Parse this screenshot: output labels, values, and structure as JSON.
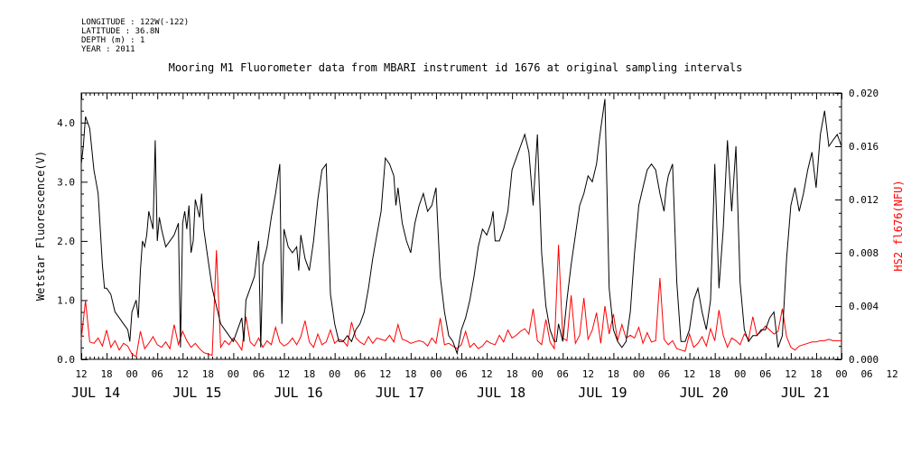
{
  "meta": {
    "longitude": "LONGITUDE : 122W(-122)",
    "latitude": "LATITUDE : 36.8N",
    "depth": "DEPTH (m) : 1",
    "year": "YEAR : 2011"
  },
  "chart_data": {
    "type": "line",
    "title": "Mooring M1 Fluorometer data from MBARI instrument id 1676 at original sampling intervals",
    "xlabel": "",
    "ylabel": "Wetstar Fluorescence(V)",
    "y2label": "HS2 fl676(NFU)",
    "xlim_hours": [
      12,
      192
    ],
    "ylim": [
      0.0,
      4.5
    ],
    "y2lim": [
      0.0,
      0.02
    ],
    "yticks": [
      "0.0",
      "1.0",
      "2.0",
      "3.0",
      "4.0"
    ],
    "y2ticks": [
      "0.000",
      "0.004",
      "0.008",
      "0.012",
      "0.016",
      "0.020"
    ],
    "hour_tick_labels": [
      "12",
      "18",
      "00",
      "06",
      "12",
      "18",
      "00",
      "06",
      "12",
      "18",
      "00",
      "06",
      "12",
      "18",
      "00",
      "06",
      "12",
      "18",
      "00",
      "06",
      "12",
      "18",
      "00",
      "06",
      "12",
      "18",
      "00",
      "06",
      "12",
      "18",
      "00",
      "06",
      "12"
    ],
    "day_labels": [
      "JUL 14",
      "JUL 15",
      "JUL 16",
      "JUL 17",
      "JUL 18",
      "JUL 19",
      "JUL 20",
      "JUL 21"
    ],
    "grid": false,
    "series": [
      {
        "name": "Wetstar Fluorescence(V)",
        "axis": "left",
        "color": "#000000",
        "x": [
          12,
          12.5,
          13,
          14,
          15,
          16,
          17,
          17.5,
          18,
          19,
          20,
          21,
          22,
          23,
          23.5,
          24,
          25,
          25.5,
          26,
          26.5,
          27,
          27.5,
          28,
          29,
          29.5,
          30,
          30.5,
          31,
          32,
          33,
          34,
          35,
          35.5,
          36,
          36.5,
          37,
          37.5,
          38,
          38.5,
          39,
          40,
          40.5,
          41,
          42,
          43,
          44,
          45,
          46,
          47,
          48,
          49,
          50,
          50.5,
          51,
          52,
          53,
          54,
          54.5,
          55,
          56,
          57,
          58,
          59,
          59.5,
          60,
          61,
          62,
          63,
          63.5,
          64,
          65,
          66,
          67,
          68,
          69,
          70,
          71,
          72,
          73,
          74,
          75,
          76,
          77,
          78,
          79,
          80,
          81,
          82,
          83,
          84,
          85,
          86,
          86.5,
          87,
          88,
          89,
          90,
          91,
          92,
          93,
          94,
          95,
          96,
          97,
          98,
          99,
          100,
          101,
          102,
          103,
          104,
          105,
          106,
          107,
          108,
          109,
          109.5,
          110,
          111,
          112,
          113,
          114,
          115,
          116,
          117,
          118,
          119,
          120,
          121,
          122,
          123,
          124,
          124.5,
          125,
          126,
          127,
          128,
          129,
          130,
          131,
          132,
          133,
          134,
          134.5,
          135,
          136,
          137,
          138,
          139,
          140,
          141,
          142,
          143,
          144,
          145,
          146,
          147,
          148,
          149,
          150,
          150.5,
          151,
          152,
          153,
          154,
          155,
          156,
          157,
          158,
          159,
          160,
          161,
          162,
          163,
          164,
          165,
          166,
          167,
          168,
          169,
          170,
          171,
          172,
          173,
          174,
          175,
          176,
          177,
          178,
          179,
          180,
          181,
          182,
          183,
          184,
          185,
          186,
          187,
          188,
          189,
          190,
          191,
          192
        ],
        "values": [
          3.3,
          3.6,
          4.1,
          3.9,
          3.2,
          2.8,
          1.6,
          1.2,
          1.2,
          1.1,
          0.8,
          0.7,
          0.6,
          0.5,
          0.3,
          0.8,
          1.0,
          0.7,
          1.5,
          2.0,
          1.9,
          2.1,
          2.5,
          2.2,
          3.7,
          2.0,
          2.4,
          2.2,
          1.9,
          2.0,
          2.1,
          2.3,
          0.2,
          2.3,
          2.5,
          2.2,
          2.6,
          1.8,
          2.0,
          2.7,
          2.4,
          2.8,
          2.2,
          1.7,
          1.2,
          0.9,
          0.6,
          0.5,
          0.4,
          0.3,
          0.5,
          0.7,
          0.3,
          1.0,
          1.2,
          1.4,
          2.0,
          0.2,
          1.6,
          1.9,
          2.4,
          2.8,
          3.3,
          0.6,
          2.2,
          1.9,
          1.8,
          1.9,
          1.5,
          2.1,
          1.7,
          1.5,
          2.0,
          2.7,
          3.2,
          3.3,
          1.1,
          0.6,
          0.3,
          0.3,
          0.4,
          0.3,
          0.5,
          0.6,
          0.8,
          1.2,
          1.7,
          2.1,
          2.5,
          3.4,
          3.3,
          3.1,
          2.6,
          2.9,
          2.3,
          2.0,
          1.8,
          2.3,
          2.6,
          2.8,
          2.5,
          2.6,
          2.9,
          1.4,
          0.8,
          0.4,
          0.3,
          0.1,
          0.5,
          0.7,
          1.0,
          1.4,
          1.9,
          2.2,
          2.1,
          2.3,
          2.5,
          2.0,
          2.0,
          2.2,
          2.5,
          3.2,
          3.4,
          3.6,
          3.8,
          3.5,
          2.6,
          3.8,
          1.8,
          0.9,
          0.5,
          0.3,
          0.3,
          0.6,
          0.3,
          1.0,
          1.6,
          2.1,
          2.6,
          2.8,
          3.1,
          3.0,
          3.3,
          3.6,
          3.9,
          4.4,
          1.2,
          0.5,
          0.3,
          0.2,
          0.3,
          0.8,
          1.8,
          2.6,
          2.9,
          3.2,
          3.3,
          3.2,
          2.8,
          2.5,
          2.9,
          3.1,
          3.3,
          1.3,
          0.3,
          0.3,
          0.5,
          1.0,
          1.2,
          0.8,
          0.5,
          1.0,
          3.3,
          1.2,
          2.2,
          3.7,
          2.5,
          3.6,
          1.3,
          0.5,
          0.3,
          0.4,
          0.4,
          0.5,
          0.5,
          0.7,
          0.8,
          0.2,
          0.4,
          1.7,
          2.6,
          2.9,
          2.5,
          2.8,
          3.2,
          3.5,
          2.9,
          3.8,
          4.2,
          3.6,
          3.7,
          3.8,
          3.6
        ]
      },
      {
        "name": "HS2 fl676(NFU)",
        "axis": "right",
        "color": "#ff0000",
        "x": [
          12,
          13,
          14,
          15,
          16,
          17,
          18,
          19,
          20,
          21,
          22,
          23,
          24,
          25,
          26,
          27,
          28,
          29,
          30,
          31,
          32,
          33,
          34,
          35,
          36,
          37,
          38,
          39,
          40,
          41,
          42,
          43,
          44,
          45,
          46,
          47,
          48,
          49,
          50,
          51,
          52,
          53,
          54,
          55,
          56,
          57,
          58,
          59,
          60,
          61,
          62,
          63,
          64,
          65,
          66,
          67,
          68,
          69,
          70,
          71,
          72,
          73,
          74,
          75,
          76,
          77,
          78,
          79,
          80,
          81,
          82,
          83,
          84,
          85,
          86,
          87,
          88,
          89,
          90,
          91,
          92,
          93,
          94,
          95,
          96,
          97,
          98,
          99,
          100,
          101,
          102,
          103,
          104,
          105,
          106,
          107,
          108,
          109,
          110,
          111,
          112,
          113,
          114,
          115,
          116,
          117,
          118,
          119,
          120,
          121,
          122,
          123,
          124,
          125,
          126,
          127,
          128,
          129,
          130,
          131,
          132,
          133,
          134,
          135,
          136,
          137,
          138,
          139,
          140,
          141,
          142,
          143,
          144,
          145,
          146,
          147,
          148,
          149,
          150,
          151,
          152,
          153,
          154,
          155,
          156,
          157,
          158,
          159,
          160,
          161,
          162,
          163,
          164,
          165,
          166,
          167,
          168,
          169,
          170,
          171,
          172,
          173,
          174,
          175,
          176,
          177,
          178,
          179,
          180,
          181,
          182,
          183,
          184,
          185,
          186,
          187,
          188,
          189,
          190,
          191,
          192
        ],
        "values": [
          0.0015,
          0.0044,
          0.0013,
          0.0012,
          0.0016,
          0.001,
          0.0022,
          0.0009,
          0.0014,
          0.0007,
          0.0012,
          0.001,
          0.0004,
          0.0002,
          0.0021,
          0.0008,
          0.0012,
          0.0017,
          0.0011,
          0.0009,
          0.0013,
          0.0008,
          0.0026,
          0.0011,
          0.0021,
          0.0014,
          0.0009,
          0.0012,
          0.0008,
          0.0005,
          0.0004,
          0.0003,
          0.0082,
          0.0009,
          0.0014,
          0.0011,
          0.0016,
          0.0012,
          0.0007,
          0.0032,
          0.0013,
          0.001,
          0.0016,
          0.0009,
          0.0014,
          0.0011,
          0.0024,
          0.0013,
          0.001,
          0.0012,
          0.0016,
          0.0011,
          0.0017,
          0.0029,
          0.0013,
          0.0009,
          0.0019,
          0.0011,
          0.0013,
          0.0022,
          0.0012,
          0.0015,
          0.0014,
          0.001,
          0.0028,
          0.0016,
          0.0013,
          0.0011,
          0.0017,
          0.0012,
          0.0016,
          0.0015,
          0.0014,
          0.0018,
          0.0013,
          0.0026,
          0.0015,
          0.0014,
          0.0012,
          0.0013,
          0.0014,
          0.0013,
          0.001,
          0.0016,
          0.0012,
          0.0031,
          0.0011,
          0.0012,
          0.001,
          0.0008,
          0.0011,
          0.0021,
          0.0009,
          0.0012,
          0.0008,
          0.001,
          0.0014,
          0.0012,
          0.0011,
          0.0018,
          0.0013,
          0.0022,
          0.0016,
          0.0018,
          0.0021,
          0.0023,
          0.0019,
          0.0038,
          0.0014,
          0.0011,
          0.003,
          0.0013,
          0.0008,
          0.0086,
          0.0016,
          0.0014,
          0.0048,
          0.0012,
          0.0018,
          0.0046,
          0.0015,
          0.0022,
          0.0035,
          0.0012,
          0.004,
          0.0019,
          0.0034,
          0.0014,
          0.0026,
          0.0016,
          0.0018,
          0.0016,
          0.0024,
          0.0012,
          0.002,
          0.0013,
          0.0014,
          0.0061,
          0.0015,
          0.0011,
          0.0014,
          0.0008,
          0.0007,
          0.0006,
          0.0019,
          0.0009,
          0.0012,
          0.0017,
          0.001,
          0.0023,
          0.0014,
          0.0037,
          0.0018,
          0.0009,
          0.0016,
          0.0014,
          0.0011,
          0.0019,
          0.0015,
          0.0032,
          0.0018,
          0.0021,
          0.0025,
          0.0022,
          0.0019,
          0.0021,
          0.0038,
          0.0017,
          0.0009,
          0.0007,
          0.001,
          0.0011,
          0.0012,
          0.0013,
          0.0013,
          0.0014,
          0.0014,
          0.0015,
          0.0014,
          0.0014,
          0.0014
        ]
      }
    ]
  }
}
